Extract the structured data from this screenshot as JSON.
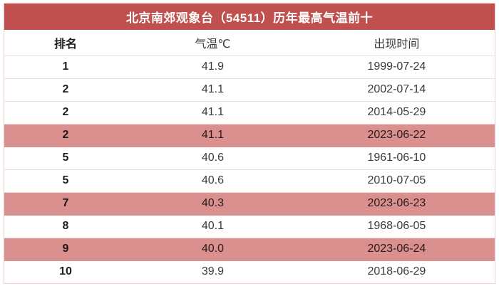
{
  "colors": {
    "header_bg": "#c0504d",
    "title_text": "#ffffff",
    "highlight_bg": "#d9908e",
    "row_separator": "#f2dcdb",
    "outer_border": "#efcfce",
    "text_bold": "#1f1f1f",
    "text_regular": "#3a3a3a"
  },
  "table": {
    "title": "北京南郊观象台（54511）历年最高气温前十",
    "columns": {
      "rank": "排名",
      "temp": "气温℃",
      "date": "出现时间"
    },
    "rows": [
      {
        "rank": "1",
        "temp": "41.9",
        "date": "1999-07-24",
        "highlighted": false
      },
      {
        "rank": "2",
        "temp": "41.1",
        "date": "2002-07-14",
        "highlighted": false
      },
      {
        "rank": "2",
        "temp": "41.1",
        "date": "2014-05-29",
        "highlighted": false
      },
      {
        "rank": "2",
        "temp": "41.1",
        "date": "2023-06-22",
        "highlighted": true
      },
      {
        "rank": "5",
        "temp": "40.6",
        "date": "1961-06-10",
        "highlighted": false
      },
      {
        "rank": "5",
        "temp": "40.6",
        "date": "2010-07-05",
        "highlighted": false
      },
      {
        "rank": "7",
        "temp": "40.3",
        "date": "2023-06-23",
        "highlighted": true
      },
      {
        "rank": "8",
        "temp": "40.1",
        "date": "1968-06-05",
        "highlighted": false
      },
      {
        "rank": "9",
        "temp": "40.0",
        "date": "2023-06-24",
        "highlighted": true
      },
      {
        "rank": "10",
        "temp": "39.9",
        "date": "2018-06-29",
        "highlighted": false
      }
    ]
  },
  "chart_data": {
    "type": "table",
    "title": "北京南郊观象台（54511）历年最高气温前十",
    "columns": [
      "排名",
      "气温℃",
      "出现时间"
    ],
    "rows": [
      [
        "1",
        41.9,
        "1999-07-24"
      ],
      [
        "2",
        41.1,
        "2002-07-14"
      ],
      [
        "2",
        41.1,
        "2014-05-29"
      ],
      [
        "2",
        41.1,
        "2023-06-22"
      ],
      [
        "5",
        40.6,
        "1961-06-10"
      ],
      [
        "5",
        40.6,
        "2010-07-05"
      ],
      [
        "7",
        40.3,
        "2023-06-23"
      ],
      [
        "8",
        40.1,
        "1968-06-05"
      ],
      [
        "9",
        40.0,
        "2023-06-24"
      ],
      [
        "10",
        39.9,
        "2018-06-29"
      ]
    ],
    "highlighted_row_indices": [
      3,
      6,
      8
    ],
    "layout_hints": {
      "highlight_meaning": "2023 dates highlighted in pink",
      "alignment": "center"
    }
  }
}
